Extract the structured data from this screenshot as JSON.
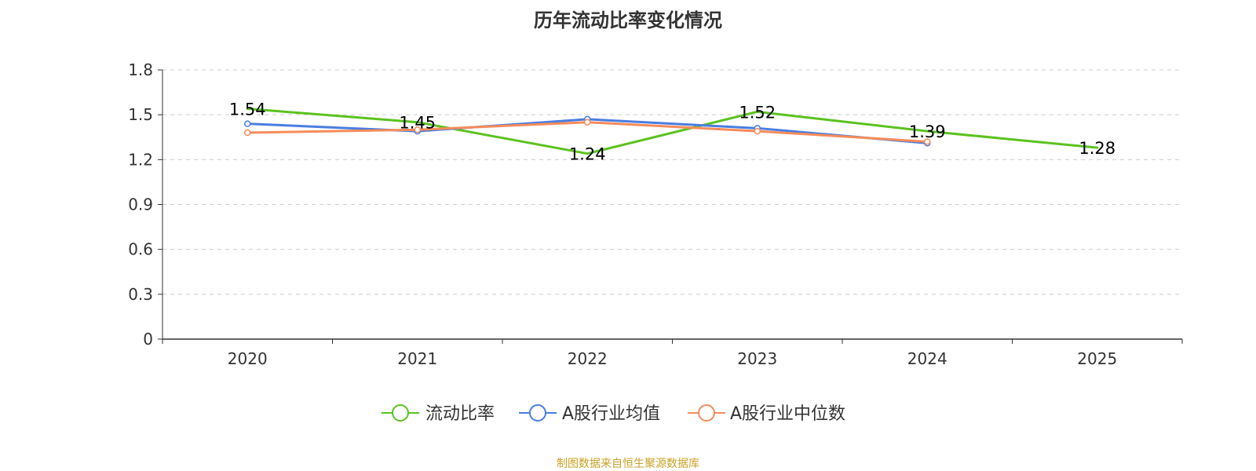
{
  "chart_data": {
    "type": "line",
    "title": "历年流动比率变化情况",
    "xlabel": "",
    "ylabel": "",
    "categories": [
      "2020",
      "2021",
      "2022",
      "2023",
      "2024",
      "2025"
    ],
    "y_ticks": [
      "0",
      "0.3",
      "0.6",
      "0.9",
      "1.2",
      "1.5",
      "1.8"
    ],
    "ylim": [
      0,
      1.8
    ],
    "grid": true,
    "legend_position": "bottom",
    "series": [
      {
        "name": "流动比率",
        "color": "#5bc21f",
        "show_labels": true,
        "values": [
          1.54,
          1.45,
          1.24,
          1.52,
          1.39,
          1.28
        ],
        "labels": [
          "1.54",
          "1.45",
          "1.24",
          "1.52",
          "1.39",
          "1.28"
        ]
      },
      {
        "name": "A股行业均值",
        "color": "#4a7de0",
        "show_labels": false,
        "values": [
          1.44,
          1.39,
          1.47,
          1.41,
          1.31,
          null
        ]
      },
      {
        "name": "A股行业中位数",
        "color": "#f58c5b",
        "show_labels": false,
        "values": [
          1.38,
          1.4,
          1.45,
          1.39,
          1.32,
          null
        ]
      }
    ]
  },
  "source_text": "制图数据来自恒生聚源数据库",
  "source_color": "#c9a227"
}
